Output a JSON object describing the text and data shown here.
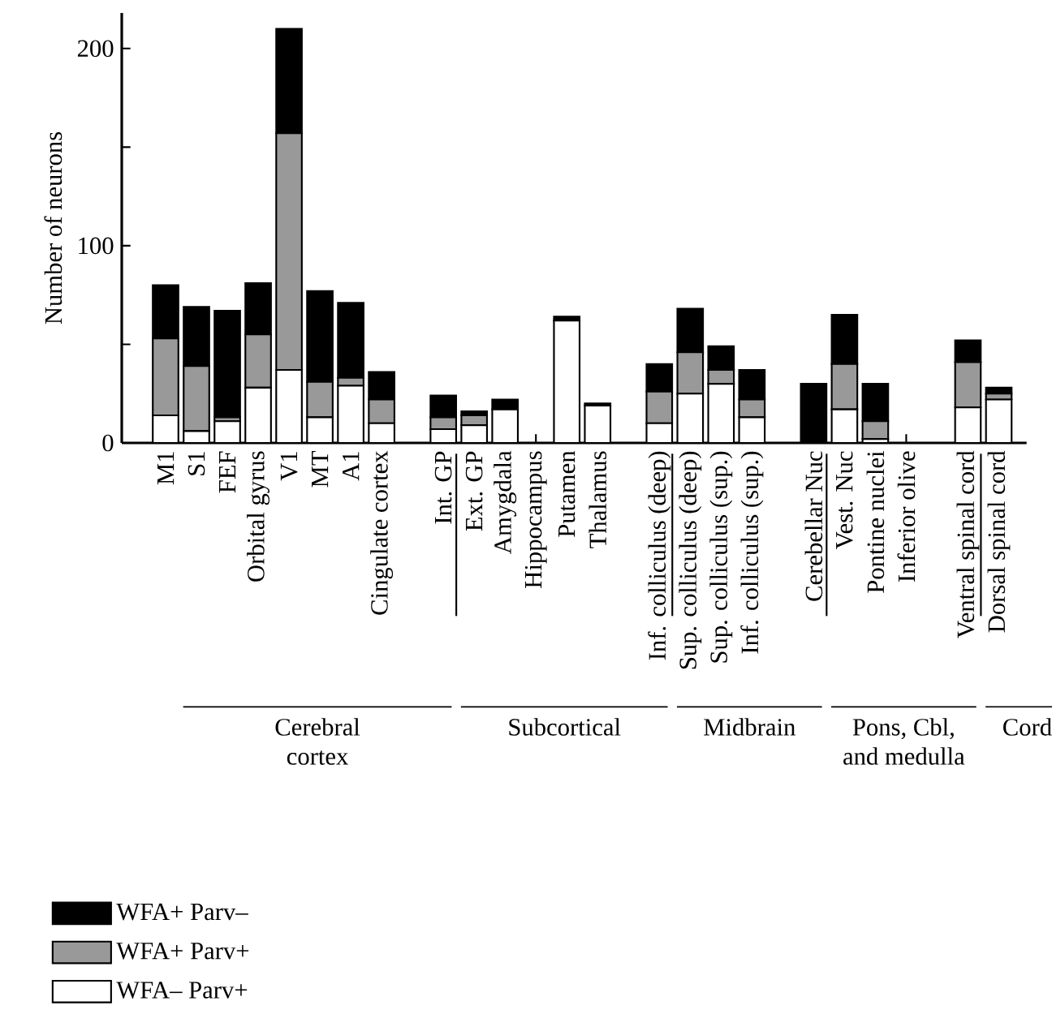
{
  "chart_data": {
    "type": "bar",
    "stacked": true,
    "ylabel": "Number of neurons",
    "categories": [
      "M1",
      "S1",
      "FEF",
      "Orbital gyrus",
      "V1",
      "MT",
      "A1",
      "Cingulate cortex",
      null,
      "Int. GP",
      "Ext. GP",
      "Amygdala",
      "Hippocampus",
      "Putamen",
      "Thalamus",
      null,
      "Inf. colliculus (deep)",
      "Sup. colliculus (deep)",
      "Sup. colliculus (sup.)",
      "Inf. colliculus (sup.)",
      null,
      "Cerebellar Nuc",
      "Vest. Nuc",
      "Pontine nuclei",
      "Inferior olive",
      null,
      "Ventral spinal cord",
      "Dorsal spinal cord"
    ],
    "series": [
      {
        "name": "WFA– Parv+",
        "color": "#ffffff",
        "values": [
          14,
          6,
          11,
          28,
          37,
          13,
          29,
          10,
          null,
          7,
          9,
          17,
          0,
          62,
          19,
          null,
          10,
          25,
          30,
          13,
          null,
          0,
          17,
          2,
          0,
          null,
          18,
          22
        ]
      },
      {
        "name": "WFA+ Parv+",
        "color": "#999999",
        "values": [
          39,
          33,
          2,
          27,
          120,
          18,
          4,
          12,
          null,
          6,
          5,
          0,
          0,
          0,
          0,
          null,
          16,
          21,
          7,
          9,
          null,
          0,
          23,
          9,
          0,
          null,
          23,
          3
        ]
      },
      {
        "name": "WFA+ Parv–",
        "color": "#000000",
        "values": [
          27,
          30,
          54,
          26,
          53,
          46,
          38,
          14,
          null,
          11,
          2,
          5,
          0,
          2,
          1,
          null,
          14,
          22,
          12,
          15,
          null,
          30,
          25,
          19,
          0,
          null,
          11,
          3
        ]
      }
    ],
    "ylim": [
      0,
      218
    ],
    "yticks": [
      0,
      {
        "value": 50,
        "label": null
      },
      100,
      {
        "value": 150,
        "label": null
      },
      200
    ],
    "legend": "bottom left",
    "annotations": [
      "Cerebral cortex",
      "Subcortical",
      "Midbrain",
      "Pons, Cbl, and medulla",
      "Cord"
    ]
  }
}
